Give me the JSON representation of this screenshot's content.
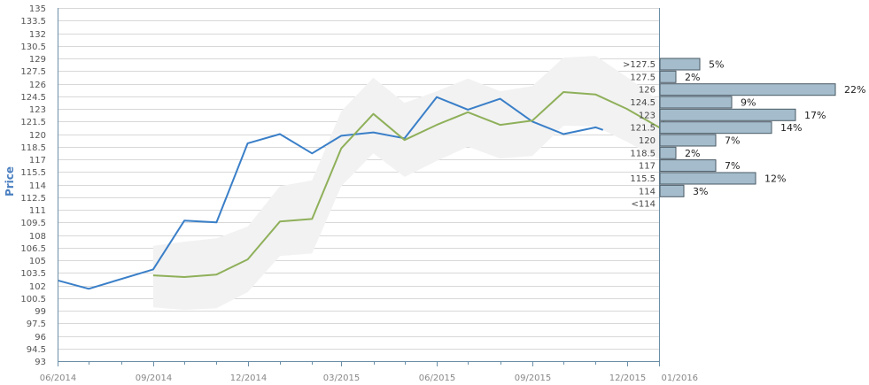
{
  "colors": {
    "actual": "#3a7fc8",
    "forecast": "#8fb05a",
    "band": "#f2f2f2",
    "grid": "#d8d8d8",
    "bar_fill": "#a4bccb",
    "bar_stroke": "#4a5a66",
    "axis_label": "#4a7fc0",
    "axis_line": "#6b8fa8"
  },
  "chart_data": {
    "type": "line",
    "ylabel": "Price",
    "xlabel": "",
    "ylim": [
      93,
      135
    ],
    "ytick_step": 1.5,
    "y_ticks": [
      "135",
      "133.5",
      "132",
      "130.5",
      "129",
      "127.5",
      "126",
      "124.5",
      "123",
      "121.5",
      "120",
      "118.5",
      "117",
      "115.5",
      "114",
      "112.5",
      "111",
      "109.5",
      "108",
      "106.5",
      "105",
      "103.5",
      "102",
      "100.5",
      "99",
      "97.5",
      "96",
      "94.5",
      "93"
    ],
    "x_range": [
      "2014-06-01",
      "2016-01-01"
    ],
    "x_ticks": [
      {
        "date": "2014-06-01",
        "label": "06/2014"
      },
      {
        "date": "2014-09-01",
        "label": "09/2014"
      },
      {
        "date": "2014-12-01",
        "label": "12/2014"
      },
      {
        "date": "2015-03-01",
        "label": "03/2015"
      },
      {
        "date": "2015-06-01",
        "label": "06/2015"
      },
      {
        "date": "2015-09-01",
        "label": "09/2015"
      },
      {
        "date": "2015-12-01",
        "label": "12/2015"
      },
      {
        "date": "2016-01-01",
        "label": "01/2016"
      }
    ],
    "x_minor_ticks": [
      "2014-07-01",
      "2014-08-01",
      "2014-10-01",
      "2014-11-01",
      "2015-01-01",
      "2015-02-01",
      "2015-04-01",
      "2015-05-01",
      "2015-07-01",
      "2015-08-01",
      "2015-10-01",
      "2015-11-01"
    ],
    "series": [
      {
        "key": "actual",
        "points": [
          {
            "x": "2014-06-01",
            "y": 102.6
          },
          {
            "x": "2014-07-01",
            "y": 101.6
          },
          {
            "x": "2014-09-01",
            "y": 103.9
          },
          {
            "x": "2014-10-01",
            "y": 109.7
          },
          {
            "x": "2014-11-01",
            "y": 109.5
          },
          {
            "x": "2014-12-01",
            "y": 118.9
          },
          {
            "x": "2015-01-01",
            "y": 120.0
          },
          {
            "x": "2015-02-01",
            "y": 117.7
          },
          {
            "x": "2015-03-01",
            "y": 119.8
          },
          {
            "x": "2015-04-01",
            "y": 120.2
          },
          {
            "x": "2015-05-01",
            "y": 119.5
          },
          {
            "x": "2015-06-01",
            "y": 124.4
          },
          {
            "x": "2015-07-01",
            "y": 122.9
          },
          {
            "x": "2015-08-01",
            "y": 124.2
          },
          {
            "x": "2015-09-01",
            "y": 121.5
          },
          {
            "x": "2015-10-01",
            "y": 120.0
          },
          {
            "x": "2015-11-01",
            "y": 120.8
          },
          {
            "x": "2015-11-08",
            "y": 120.5
          }
        ]
      },
      {
        "key": "forecast",
        "points": [
          {
            "x": "2014-09-01",
            "y": 103.2
          },
          {
            "x": "2014-10-01",
            "y": 103.0
          },
          {
            "x": "2014-11-01",
            "y": 103.3
          },
          {
            "x": "2014-12-01",
            "y": 105.1
          },
          {
            "x": "2015-01-01",
            "y": 109.6
          },
          {
            "x": "2015-02-01",
            "y": 109.9
          },
          {
            "x": "2015-03-01",
            "y": 118.3
          },
          {
            "x": "2015-04-01",
            "y": 122.4
          },
          {
            "x": "2015-05-01",
            "y": 119.3
          },
          {
            "x": "2015-06-01",
            "y": 121.1
          },
          {
            "x": "2015-07-01",
            "y": 122.6
          },
          {
            "x": "2015-08-01",
            "y": 121.1
          },
          {
            "x": "2015-09-01",
            "y": 121.6
          },
          {
            "x": "2015-10-01",
            "y": 125.0
          },
          {
            "x": "2015-11-01",
            "y": 124.7
          },
          {
            "x": "2015-12-01",
            "y": 123.0
          },
          {
            "x": "2016-01-01",
            "y": 120.8
          },
          {
            "x": "2016-01-06",
            "y": 121.5
          }
        ]
      }
    ],
    "band": {
      "upper": [
        {
          "x": "2014-09-01",
          "y": 106.7
        },
        {
          "x": "2014-10-01",
          "y": 107.2
        },
        {
          "x": "2014-11-01",
          "y": 107.6
        },
        {
          "x": "2014-12-01",
          "y": 109.0
        },
        {
          "x": "2015-01-01",
          "y": 113.8
        },
        {
          "x": "2015-02-01",
          "y": 114.5
        },
        {
          "x": "2015-03-01",
          "y": 122.7
        },
        {
          "x": "2015-04-01",
          "y": 126.7
        },
        {
          "x": "2015-05-01",
          "y": 123.7
        },
        {
          "x": "2015-06-01",
          "y": 125.1
        },
        {
          "x": "2015-07-01",
          "y": 126.6
        },
        {
          "x": "2015-08-01",
          "y": 125.1
        },
        {
          "x": "2015-09-01",
          "y": 125.7
        },
        {
          "x": "2015-10-01",
          "y": 129.1
        },
        {
          "x": "2015-11-01",
          "y": 129.3
        },
        {
          "x": "2015-12-01",
          "y": 126.8
        },
        {
          "x": "2016-01-01",
          "y": 124.0
        }
      ],
      "lower": [
        {
          "x": "2014-09-01",
          "y": 99.4
        },
        {
          "x": "2014-10-01",
          "y": 99.1
        },
        {
          "x": "2014-11-01",
          "y": 99.3
        },
        {
          "x": "2014-12-01",
          "y": 101.2
        },
        {
          "x": "2015-01-01",
          "y": 105.5
        },
        {
          "x": "2015-02-01",
          "y": 105.8
        },
        {
          "x": "2015-03-01",
          "y": 113.8
        },
        {
          "x": "2015-04-01",
          "y": 117.7
        },
        {
          "x": "2015-05-01",
          "y": 114.9
        },
        {
          "x": "2015-06-01",
          "y": 116.8
        },
        {
          "x": "2015-07-01",
          "y": 118.5
        },
        {
          "x": "2015-08-01",
          "y": 117.1
        },
        {
          "x": "2015-09-01",
          "y": 117.4
        },
        {
          "x": "2015-10-01",
          "y": 121.0
        },
        {
          "x": "2015-11-01",
          "y": 120.9
        },
        {
          "x": "2015-12-01",
          "y": 119.1
        },
        {
          "x": "2016-01-01",
          "y": 117.0
        }
      ]
    },
    "distribution": {
      "type": "bar",
      "orientation": "horizontal",
      "max_percent": 22,
      "bins": [
        {
          "label": ">127.5",
          "percent": 5,
          "percent_label": "5%"
        },
        {
          "label": "127.5",
          "percent": 2,
          "percent_label": "2%"
        },
        {
          "label": "126",
          "percent": 22,
          "percent_label": "22%"
        },
        {
          "label": "124.5",
          "percent": 9,
          "percent_label": "9%"
        },
        {
          "label": "123",
          "percent": 17,
          "percent_label": "17%"
        },
        {
          "label": "121.5",
          "percent": 14,
          "percent_label": "14%"
        },
        {
          "label": "120",
          "percent": 7,
          "percent_label": "7%"
        },
        {
          "label": "118.5",
          "percent": 2,
          "percent_label": "2%"
        },
        {
          "label": "117",
          "percent": 7,
          "percent_label": "7%"
        },
        {
          "label": "115.5",
          "percent": 12,
          "percent_label": "12%"
        },
        {
          "label": "114",
          "percent": 3,
          "percent_label": "3%"
        },
        {
          "label": "<114",
          "percent": 0,
          "percent_label": ""
        }
      ]
    }
  }
}
